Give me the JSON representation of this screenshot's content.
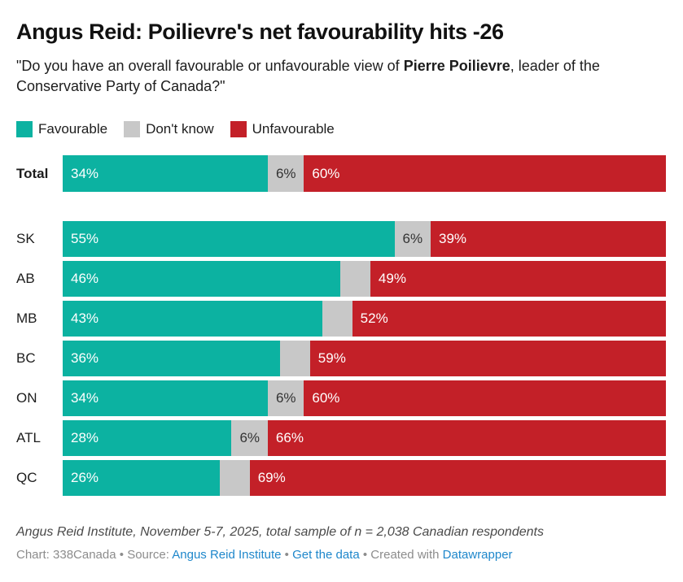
{
  "header": {
    "title": "Angus Reid: Poilievre's net favourability hits -26",
    "subtitle_prefix": "\"Do you have an overall favourable or unfavourable view of ",
    "subtitle_bold": "Pierre Poilievre",
    "subtitle_suffix": ", leader of the Conservative Party of Canada?\""
  },
  "chart_data": {
    "type": "bar",
    "variant": "horizontal-stacked",
    "title": "Angus Reid: Poilievre's net favourability hits -26",
    "categories": [
      "Total",
      "SK",
      "AB",
      "MB",
      "BC",
      "ON",
      "ATL",
      "QC"
    ],
    "series": [
      {
        "name": "Favourable",
        "color": "#0cb2a1",
        "label_color": "#ffffff",
        "values": [
          34,
          55,
          46,
          43,
          36,
          34,
          28,
          26
        ]
      },
      {
        "name": "Don't know",
        "color": "#c8c8c8",
        "label_color": "#333333",
        "values": [
          6,
          6,
          5,
          5,
          5,
          6,
          6,
          5
        ]
      },
      {
        "name": "Unfavourable",
        "color": "#c32028",
        "label_color": "#ffffff",
        "values": [
          60,
          39,
          49,
          52,
          59,
          60,
          66,
          69
        ]
      }
    ],
    "xlim": [
      0,
      100
    ],
    "label_suffix": "%",
    "min_value_for_label": 6,
    "emphasized_category": "Total",
    "gap_after_category": "Total",
    "legend_position": "top",
    "grid": false
  },
  "legend": {
    "items": [
      {
        "label": "Favourable",
        "color": "#0cb2a1"
      },
      {
        "label": "Don't know",
        "color": "#c8c8c8"
      },
      {
        "label": "Unfavourable",
        "color": "#c32028"
      }
    ]
  },
  "footer": {
    "note": "Angus Reid Institute, November 5-7, 2025, total sample of n = 2,038 Canadian respondents",
    "byline": {
      "chart_credit": "Chart: 338Canada",
      "separator": "•",
      "source_label": "Source:",
      "source_link": "Angus Reid Institute",
      "data_link": "Get the data",
      "created_label": "Created with",
      "tool_link": "Datawrapper"
    }
  },
  "colors": {
    "favourable": "#0cb2a1",
    "dont_know": "#c8c8c8",
    "unfavourable": "#c32028",
    "link": "#1e87cb",
    "byline_text": "#8c8c8c"
  }
}
